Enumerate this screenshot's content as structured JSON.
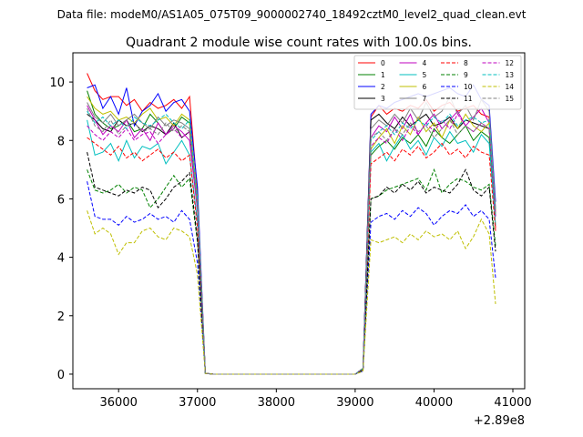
{
  "chart_data": {
    "type": "line",
    "suptitle": "Data file: modeM0/AS1A05_075T09_9000002740_18492cztM0_level2_quad_clean.evt",
    "title": "Quadrant 2 module wise count rates with 100.0s bins.",
    "xlabel": "",
    "ylabel": "",
    "x_offset_label": "+2.89e8",
    "xlim": [
      35420,
      41150
    ],
    "ylim": [
      -0.5,
      11.0
    ],
    "x_ticks": [
      36000,
      37000,
      38000,
      39000,
      40000,
      41000
    ],
    "x_tick_labels": [
      "36000",
      "37000",
      "38000",
      "39000",
      "40000",
      "41000"
    ],
    "y_ticks": [
      0,
      2,
      4,
      6,
      8,
      10
    ],
    "y_tick_labels": [
      "0",
      "2",
      "4",
      "6",
      "8",
      "10"
    ],
    "legend_position": "top-right",
    "colors": [
      "#ff0000",
      "#008000",
      "#0000ff",
      "#000000",
      "#bf00bf",
      "#00bfbf",
      "#bfbf00",
      "#808080"
    ],
    "x": [
      35600,
      35700,
      35800,
      35900,
      36000,
      36100,
      36200,
      36300,
      36400,
      36500,
      36600,
      36700,
      36800,
      36900,
      37000,
      37100,
      37200,
      37300,
      37400,
      37500,
      37600,
      37700,
      37800,
      37900,
      38000,
      38100,
      38200,
      38300,
      38400,
      38500,
      38600,
      38700,
      38800,
      38900,
      39000,
      39100,
      39200,
      39300,
      39400,
      39500,
      39600,
      39700,
      39800,
      39900,
      40000,
      40100,
      40200,
      40300,
      40400,
      40500,
      40600,
      40700,
      40780
    ],
    "series": [
      {
        "name": "0",
        "values": [
          10.3,
          9.7,
          9.4,
          9.5,
          9.5,
          9.2,
          9.4,
          9.0,
          9.3,
          9.1,
          9.2,
          9.4,
          9.1,
          9.5,
          6.2,
          0.03,
          0,
          0,
          0,
          0,
          0,
          0,
          0,
          0,
          0,
          0,
          0,
          0,
          0,
          0,
          0,
          0,
          0,
          0,
          0,
          0.2,
          8.8,
          9.2,
          8.9,
          9.1,
          9.0,
          9.2,
          9.1,
          9.4,
          9.0,
          9.2,
          9.3,
          9.0,
          9.1,
          9.2,
          8.9,
          8.8,
          5.0
        ]
      },
      {
        "name": "1",
        "values": [
          9.7,
          8.9,
          8.6,
          8.4,
          8.5,
          8.7,
          8.3,
          8.4,
          8.9,
          8.6,
          8.2,
          8.4,
          8.8,
          8.6,
          5.9,
          0.03,
          0,
          0,
          0,
          0,
          0,
          0,
          0,
          0,
          0,
          0,
          0,
          0,
          0,
          0,
          0,
          0,
          0,
          0,
          0,
          0.2,
          7.5,
          7.8,
          8.0,
          7.7,
          8.1,
          7.9,
          8.2,
          7.8,
          8.4,
          8.1,
          7.9,
          8.2,
          8.5,
          8.0,
          8.3,
          8.1,
          5.4
        ]
      },
      {
        "name": "2",
        "values": [
          9.8,
          9.9,
          9.1,
          9.5,
          8.9,
          9.8,
          8.5,
          9.0,
          9.2,
          9.6,
          9.0,
          9.3,
          9.4,
          9.0,
          6.4,
          0.03,
          0,
          0,
          0,
          0,
          0,
          0,
          0,
          0,
          0,
          0,
          0,
          0,
          0,
          0,
          0,
          0,
          0,
          0,
          0,
          0.2,
          8.9,
          9.2,
          9.1,
          9.3,
          9.4,
          9.5,
          9.6,
          9.5,
          9.6,
          9.7,
          9.8,
          9.6,
          9.5,
          9.9,
          9.4,
          9.2,
          5.9
        ]
      },
      {
        "name": "3",
        "values": [
          8.9,
          8.7,
          8.4,
          8.3,
          8.7,
          8.5,
          8.6,
          8.3,
          8.5,
          8.4,
          8.2,
          8.6,
          8.1,
          8.3,
          5.7,
          0.03,
          0,
          0,
          0,
          0,
          0,
          0,
          0,
          0,
          0,
          0,
          0,
          0,
          0,
          0,
          0,
          0,
          0,
          0,
          0,
          0.2,
          8.7,
          8.9,
          8.6,
          8.4,
          8.8,
          8.5,
          8.7,
          8.9,
          8.5,
          8.6,
          8.8,
          8.4,
          8.7,
          8.6,
          8.5,
          8.4,
          5.6
        ]
      },
      {
        "name": "4",
        "values": [
          9.2,
          8.7,
          8.2,
          8.5,
          8.3,
          8.7,
          8.1,
          8.4,
          8.0,
          8.6,
          8.2,
          8.5,
          8.3,
          8.0,
          5.6,
          0.03,
          0,
          0,
          0,
          0,
          0,
          0,
          0,
          0,
          0,
          0,
          0,
          0,
          0,
          0,
          0,
          0,
          0,
          0,
          0,
          0.2,
          8.1,
          8.5,
          8.3,
          8.8,
          8.4,
          8.9,
          8.2,
          8.6,
          8.9,
          8.4,
          8.7,
          9.0,
          8.5,
          8.8,
          9.1,
          8.6,
          5.5
        ]
      },
      {
        "name": "5",
        "values": [
          8.7,
          7.5,
          7.6,
          7.9,
          7.3,
          8.0,
          7.4,
          7.8,
          7.7,
          7.9,
          7.2,
          7.6,
          8.0,
          7.5,
          5.2,
          0.03,
          0,
          0,
          0,
          0,
          0,
          0,
          0,
          0,
          0,
          0,
          0,
          0,
          0,
          0,
          0,
          0,
          0,
          0,
          0,
          0.2,
          7.6,
          7.9,
          7.3,
          7.8,
          8.2,
          7.7,
          8.0,
          7.5,
          8.1,
          7.8,
          8.3,
          7.9,
          8.0,
          7.6,
          8.2,
          7.9,
          5.1
        ]
      },
      {
        "name": "6",
        "values": [
          9.5,
          9.1,
          8.9,
          9.0,
          8.7,
          8.8,
          8.6,
          8.9,
          9.1,
          8.7,
          8.8,
          8.5,
          8.9,
          8.7,
          6.0,
          0.03,
          0,
          0,
          0,
          0,
          0,
          0,
          0,
          0,
          0,
          0,
          0,
          0,
          0,
          0,
          0,
          0,
          0,
          0,
          0,
          0.2,
          7.7,
          8.1,
          8.4,
          7.9,
          8.5,
          8.2,
          8.8,
          8.3,
          8.6,
          8.1,
          8.7,
          8.4,
          8.9,
          8.5,
          8.3,
          8.6,
          5.6
        ]
      },
      {
        "name": "7",
        "values": [
          9.3,
          8.8,
          8.6,
          8.9,
          8.5,
          8.7,
          8.9,
          8.6,
          8.4,
          8.8,
          8.5,
          8.7,
          8.6,
          8.4,
          5.8,
          0.03,
          0,
          0,
          0,
          0,
          0,
          0,
          0,
          0,
          0,
          0,
          0,
          0,
          0,
          0,
          0,
          0,
          0,
          0,
          0,
          0.2,
          8.4,
          8.7,
          8.5,
          8.9,
          8.6,
          9.1,
          8.7,
          9.3,
          8.8,
          9.0,
          9.5,
          8.9,
          9.2,
          8.7,
          9.4,
          9.0,
          5.7
        ]
      },
      {
        "name": "8",
        "values": [
          8.1,
          7.9,
          7.7,
          7.5,
          7.8,
          7.4,
          7.6,
          7.3,
          7.5,
          7.7,
          7.4,
          7.6,
          7.3,
          7.5,
          5.0,
          0.03,
          0,
          0,
          0,
          0,
          0,
          0,
          0,
          0,
          0,
          0,
          0,
          0,
          0,
          0,
          0,
          0,
          0,
          0,
          0,
          0.15,
          7.2,
          7.4,
          7.6,
          7.3,
          7.7,
          7.5,
          7.8,
          7.4,
          7.6,
          7.9,
          7.5,
          7.7,
          7.4,
          7.8,
          7.6,
          7.5,
          4.9
        ]
      },
      {
        "name": "9",
        "values": [
          7.0,
          6.3,
          6.2,
          6.3,
          6.5,
          6.2,
          6.4,
          6.3,
          5.7,
          6.0,
          6.4,
          6.8,
          6.4,
          6.7,
          4.5,
          0.03,
          0,
          0,
          0,
          0,
          0,
          0,
          0,
          0,
          0,
          0,
          0,
          0,
          0,
          0,
          0,
          0,
          0,
          0,
          0,
          0.15,
          6.0,
          6.1,
          6.3,
          6.4,
          6.5,
          6.6,
          6.7,
          6.3,
          7.0,
          6.2,
          6.5,
          6.7,
          6.6,
          6.4,
          6.3,
          6.5,
          4.4
        ]
      },
      {
        "name": "10",
        "values": [
          6.6,
          5.4,
          5.3,
          5.3,
          5.1,
          5.4,
          5.2,
          5.3,
          5.5,
          5.3,
          5.4,
          5.2,
          5.6,
          5.3,
          3.8,
          0.03,
          0,
          0,
          0,
          0,
          0,
          0,
          0,
          0,
          0,
          0,
          0,
          0,
          0,
          0,
          0,
          0,
          0,
          0,
          0,
          0.1,
          5.2,
          5.4,
          5.5,
          5.3,
          5.6,
          5.4,
          5.7,
          5.5,
          5.1,
          5.4,
          5.6,
          5.5,
          5.8,
          5.4,
          5.6,
          5.3,
          3.3
        ]
      },
      {
        "name": "11",
        "values": [
          7.6,
          6.4,
          6.3,
          6.2,
          6.1,
          6.3,
          6.2,
          6.4,
          6.3,
          5.7,
          6.0,
          6.4,
          6.6,
          6.9,
          4.6,
          0.03,
          0,
          0,
          0,
          0,
          0,
          0,
          0,
          0,
          0,
          0,
          0,
          0,
          0,
          0,
          0,
          0,
          0,
          0,
          0,
          0.15,
          6.0,
          6.1,
          6.4,
          6.2,
          6.5,
          6.3,
          6.6,
          6.2,
          6.4,
          6.3,
          6.2,
          6.5,
          7.0,
          6.3,
          6.1,
          6.4,
          4.2
        ]
      },
      {
        "name": "12",
        "values": [
          8.5,
          8.2,
          8.0,
          8.3,
          8.1,
          8.4,
          8.0,
          8.2,
          8.3,
          7.9,
          8.2,
          8.4,
          8.1,
          8.3,
          5.6,
          0.03,
          0,
          0,
          0,
          0,
          0,
          0,
          0,
          0,
          0,
          0,
          0,
          0,
          0,
          0,
          0,
          0,
          0,
          0,
          0,
          0.2,
          7.8,
          8.1,
          7.9,
          8.4,
          8.0,
          8.5,
          8.2,
          8.6,
          8.3,
          8.7,
          8.4,
          8.9,
          8.5,
          8.3,
          8.6,
          8.4,
          5.4
        ]
      },
      {
        "name": "13",
        "values": [
          9.0,
          8.6,
          8.8,
          8.5,
          8.7,
          8.4,
          8.8,
          8.6,
          8.5,
          8.7,
          8.9,
          8.6,
          8.4,
          8.7,
          5.9,
          0.03,
          0,
          0,
          0,
          0,
          0,
          0,
          0,
          0,
          0,
          0,
          0,
          0,
          0,
          0,
          0,
          0,
          0,
          0,
          0,
          0.2,
          8.0,
          8.3,
          8.5,
          8.2,
          8.6,
          8.4,
          8.7,
          8.5,
          8.8,
          8.6,
          8.9,
          8.5,
          8.7,
          8.8,
          8.6,
          8.7,
          5.6
        ]
      },
      {
        "name": "14",
        "values": [
          5.6,
          4.8,
          5.0,
          4.8,
          4.1,
          4.5,
          4.5,
          4.9,
          5.0,
          4.7,
          4.6,
          5.0,
          4.9,
          4.7,
          3.4,
          0.03,
          0,
          0,
          0,
          0,
          0,
          0,
          0,
          0,
          0,
          0,
          0,
          0,
          0,
          0,
          0,
          0,
          0,
          0,
          0,
          0.1,
          4.6,
          4.5,
          4.6,
          4.7,
          4.5,
          4.8,
          4.6,
          4.9,
          4.7,
          4.8,
          4.6,
          4.9,
          4.3,
          4.7,
          5.3,
          4.8,
          2.4
        ]
      },
      {
        "name": "15",
        "values": [
          9.1,
          8.5,
          8.3,
          8.7,
          8.2,
          8.5,
          8.6,
          8.3,
          8.4,
          8.2,
          8.6,
          8.3,
          8.5,
          8.3,
          5.7,
          0.03,
          0,
          0,
          0,
          0,
          0,
          0,
          0,
          0,
          0,
          0,
          0,
          0,
          0,
          0,
          0,
          0,
          0,
          0,
          0,
          0.2,
          8.1,
          8.3,
          8.0,
          8.4,
          8.2,
          8.6,
          8.3,
          8.5,
          8.1,
          8.4,
          8.7,
          8.2,
          8.5,
          8.3,
          8.6,
          8.4,
          5.5
        ]
      }
    ]
  }
}
